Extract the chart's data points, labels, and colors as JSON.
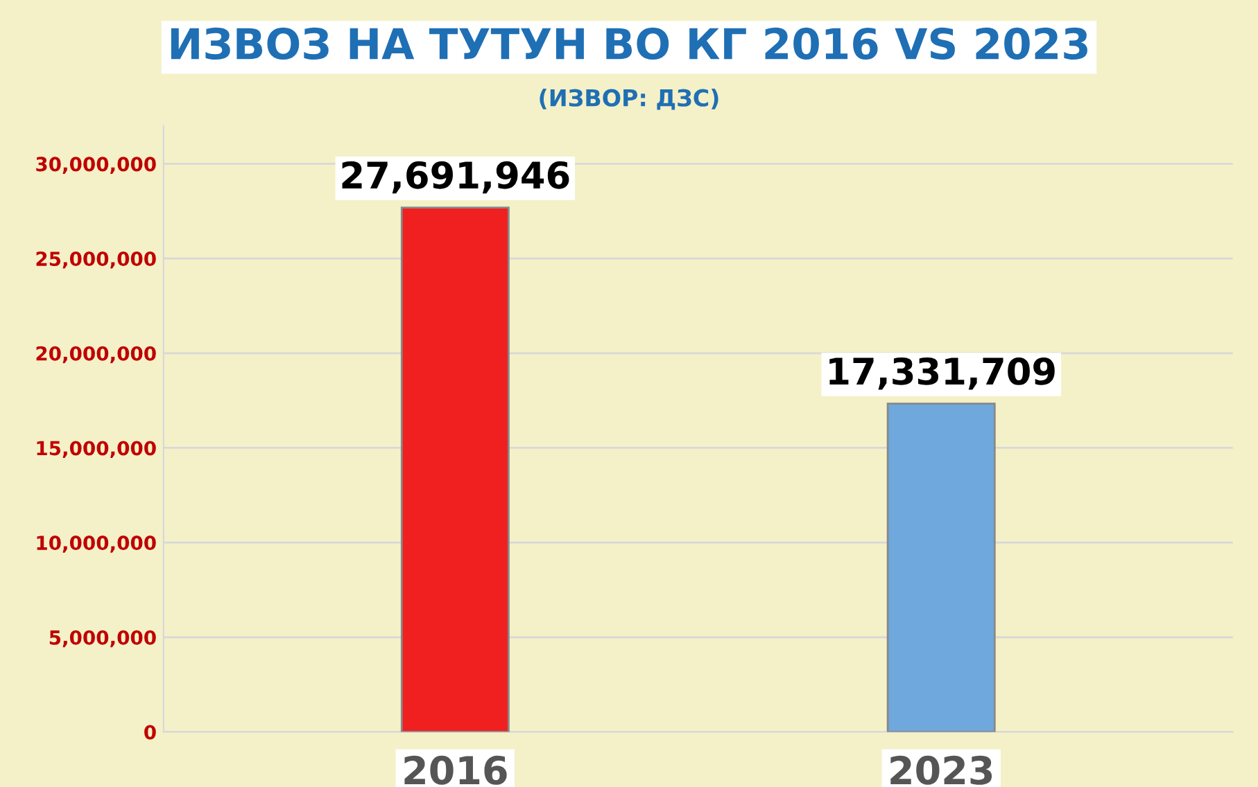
{
  "chart_data": {
    "type": "bar",
    "title": "ИЗВОЗ НА ТУТУН ВО КГ 2016 VS 2023",
    "subtitle": "(ИЗВОР: ДЗС)",
    "categories": [
      "2016",
      "2023"
    ],
    "values": [
      27691946,
      17331709
    ],
    "colors": [
      "#f02020",
      "#6fa8dc"
    ],
    "value_labels": [
      "27,691,946",
      "17,331,709"
    ],
    "ylim": [
      0,
      32000000
    ],
    "yticks": [
      {
        "value": 0,
        "label": "0"
      },
      {
        "value": 5000000,
        "label": "5,000,000"
      },
      {
        "value": 10000000,
        "label": "10,000,000"
      },
      {
        "value": 15000000,
        "label": "15,000,000"
      },
      {
        "value": 20000000,
        "label": "20,000,000"
      },
      {
        "value": 25000000,
        "label": "25,000,000"
      },
      {
        "value": 30000000,
        "label": "30,000,000"
      }
    ],
    "grid": "y",
    "legend": false
  }
}
